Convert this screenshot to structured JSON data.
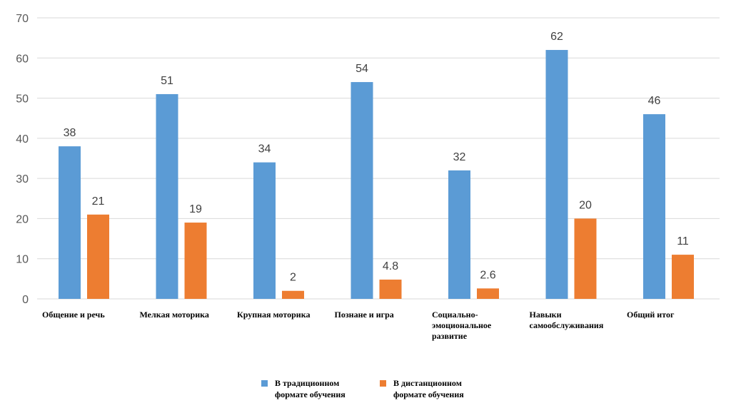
{
  "chart_data": {
    "type": "bar",
    "categories": [
      [
        "Общение и речь"
      ],
      [
        "Мелкая моторика"
      ],
      [
        "Крупная моторика"
      ],
      [
        "Познане и игра"
      ],
      [
        "Социально-",
        "эмоциональное",
        "развитие"
      ],
      [
        "Навыки",
        "самообслуживания"
      ],
      [
        "Общий итог"
      ]
    ],
    "series": [
      {
        "name": [
          "В традиционном",
          "формате обучения"
        ],
        "color": "#5B9BD5",
        "values": [
          38,
          51,
          34,
          54,
          32,
          62,
          46
        ],
        "labels": [
          "38",
          "51",
          "34",
          "54",
          "32",
          "62",
          "46"
        ]
      },
      {
        "name": [
          "В дистанционном",
          "формате обучения"
        ],
        "color": "#ED7D31",
        "values": [
          21,
          19,
          2,
          4.8,
          2.6,
          20,
          11
        ],
        "labels": [
          "21",
          "19",
          "2",
          "4.8",
          "2.6",
          "20",
          "11"
        ]
      }
    ],
    "ylim": [
      0,
      70
    ],
    "yticks": [
      "0",
      "10",
      "20",
      "30",
      "40",
      "50",
      "60",
      "70"
    ],
    "grid": true,
    "gridColor": "#D9D9D9",
    "legend": "bottom"
  }
}
